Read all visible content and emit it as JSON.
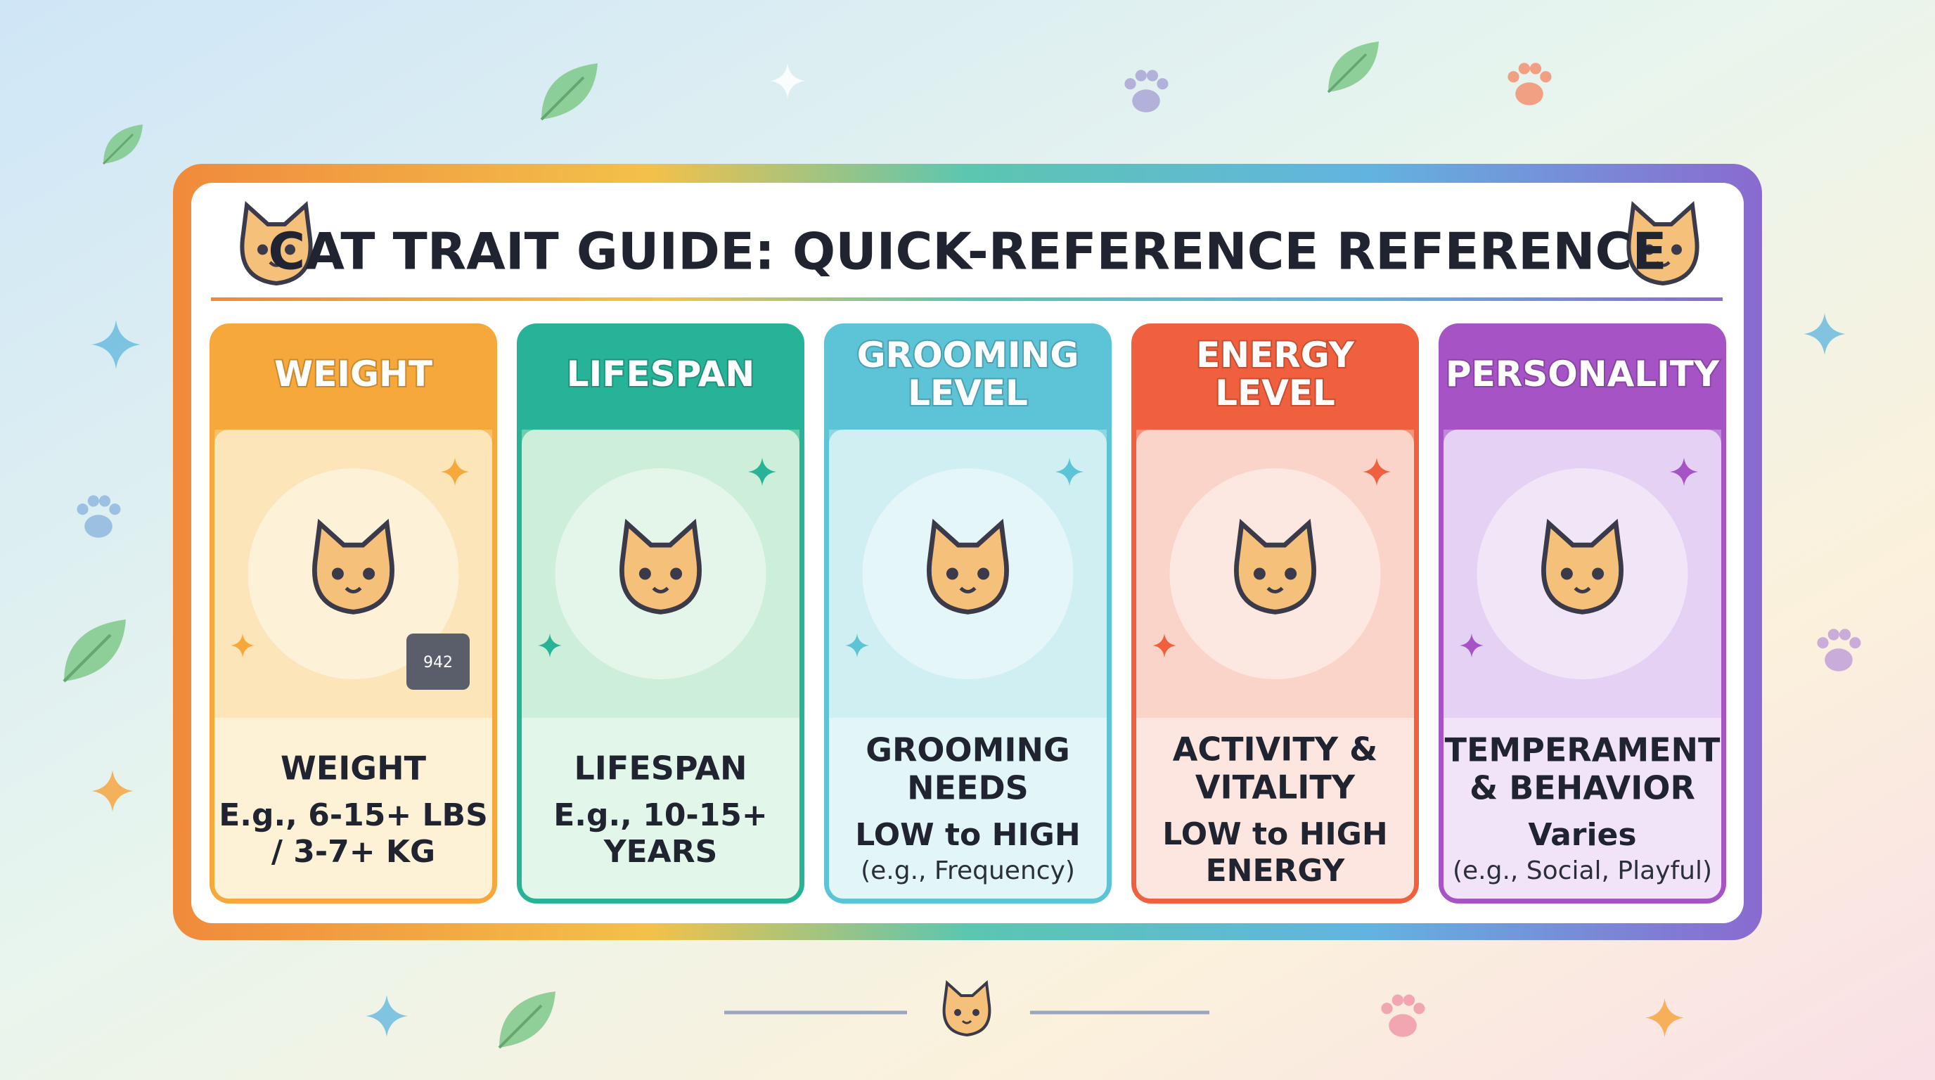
{
  "header": {
    "title": "CAT TRAIT GUIDE: QUICK-REFERENCE REFERENCE"
  },
  "cards": [
    {
      "header_lines": [
        "WEIGHT"
      ],
      "label_lines": [
        "WEIGHT"
      ],
      "value_lines": [
        "E.g., 6-15+ LBS",
        "/ 3-7+ KG"
      ],
      "illustration_text": "942"
    },
    {
      "header_lines": [
        "LIFESPAN"
      ],
      "label_lines": [
        "LIFESPAN"
      ],
      "value_lines": [
        "E.g., 10-15+",
        "YEARS"
      ]
    },
    {
      "header_lines": [
        "GROOMING",
        "LEVEL"
      ],
      "label_lines": [
        "GROOMING",
        "NEEDS"
      ],
      "value_lines": [
        "LOW to HIGH"
      ],
      "note": "(e.g., Frequency)"
    },
    {
      "header_lines": [
        "ENERGY",
        "LEVEL"
      ],
      "label_lines": [
        "ACTIVITY &",
        "VITALITY"
      ],
      "value_lines": [
        "LOW to HIGH",
        "ENERGY"
      ]
    },
    {
      "header_lines": [
        "PERSONALITY"
      ],
      "label_lines": [
        "TEMPERAMENT",
        "& BEHAVIOR"
      ],
      "value_lines": [
        "Varies"
      ],
      "note": "(e.g., Social, Playful)"
    }
  ]
}
